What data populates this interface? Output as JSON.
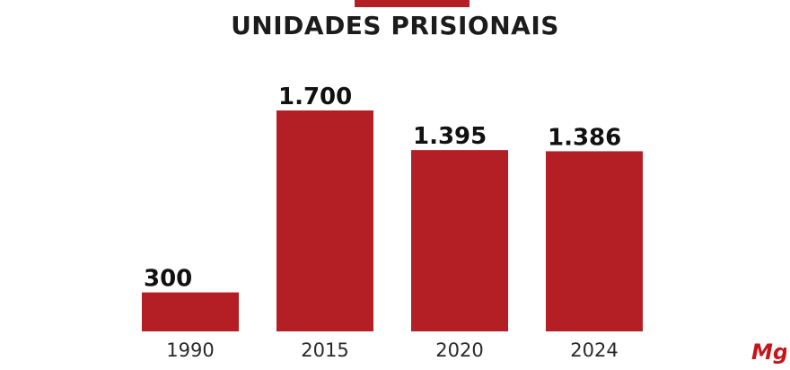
{
  "chart_data": {
    "type": "bar",
    "title": "UNIDADES PRISIONAIS",
    "categories": [
      "1990",
      "2015",
      "2020",
      "2024"
    ],
    "values": [
      300,
      1700,
      1395,
      1386
    ],
    "value_labels": [
      "300",
      "1.700",
      "1.395",
      "1.386"
    ],
    "xlabel": "",
    "ylabel": "",
    "ylim": [
      0,
      1700
    ],
    "grid": false,
    "legend": "none",
    "bar_color": "#b31f24"
  },
  "logo": {
    "text": "Mg",
    "color": "#c4161c"
  }
}
